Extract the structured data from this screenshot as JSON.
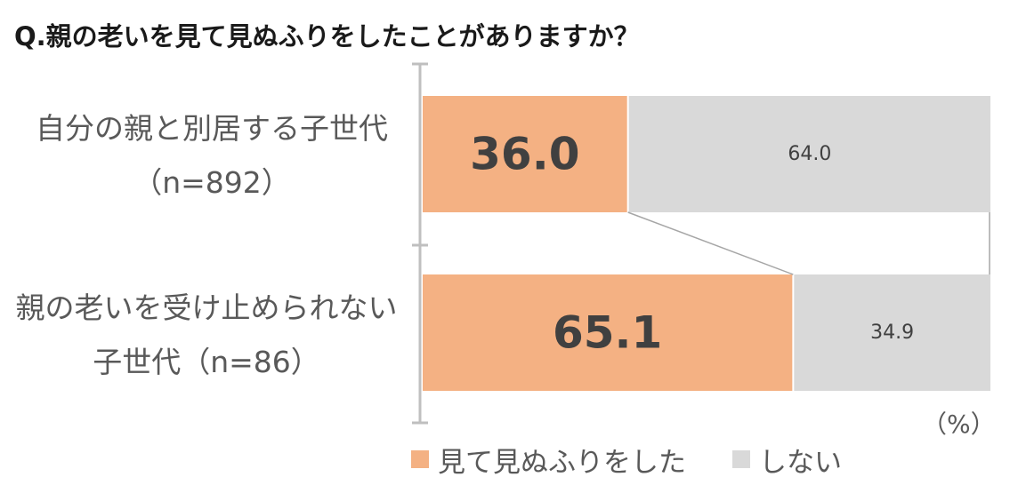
{
  "title": "Q.親の老いを見て見ぬふりをしたことがありますか？",
  "unit": "（%）",
  "colors": {
    "series1": "#f4b183",
    "series2": "#d9d9d9",
    "axis": "#bfbfbf",
    "connector": "#a6a6a6",
    "value_text": "#404040"
  },
  "chart_data": {
    "type": "bar",
    "orientation": "horizontal",
    "stacked": "100%",
    "categories": [
      {
        "line1": "自分の親と別居する子世代",
        "line2": "（n=892）"
      },
      {
        "line1": "親の老いを受け止められない",
        "line2": "子世代（n=86）"
      }
    ],
    "series": [
      {
        "name": "見て見ぬふりをした",
        "values": [
          36.0,
          65.1
        ],
        "labels": [
          "36.0",
          "65.1"
        ]
      },
      {
        "name": "しない",
        "values": [
          64.0,
          34.9
        ],
        "labels": [
          "64.0",
          "34.9"
        ]
      }
    ],
    "xlim": [
      0,
      100
    ],
    "legend_position": "bottom",
    "grid": false
  }
}
